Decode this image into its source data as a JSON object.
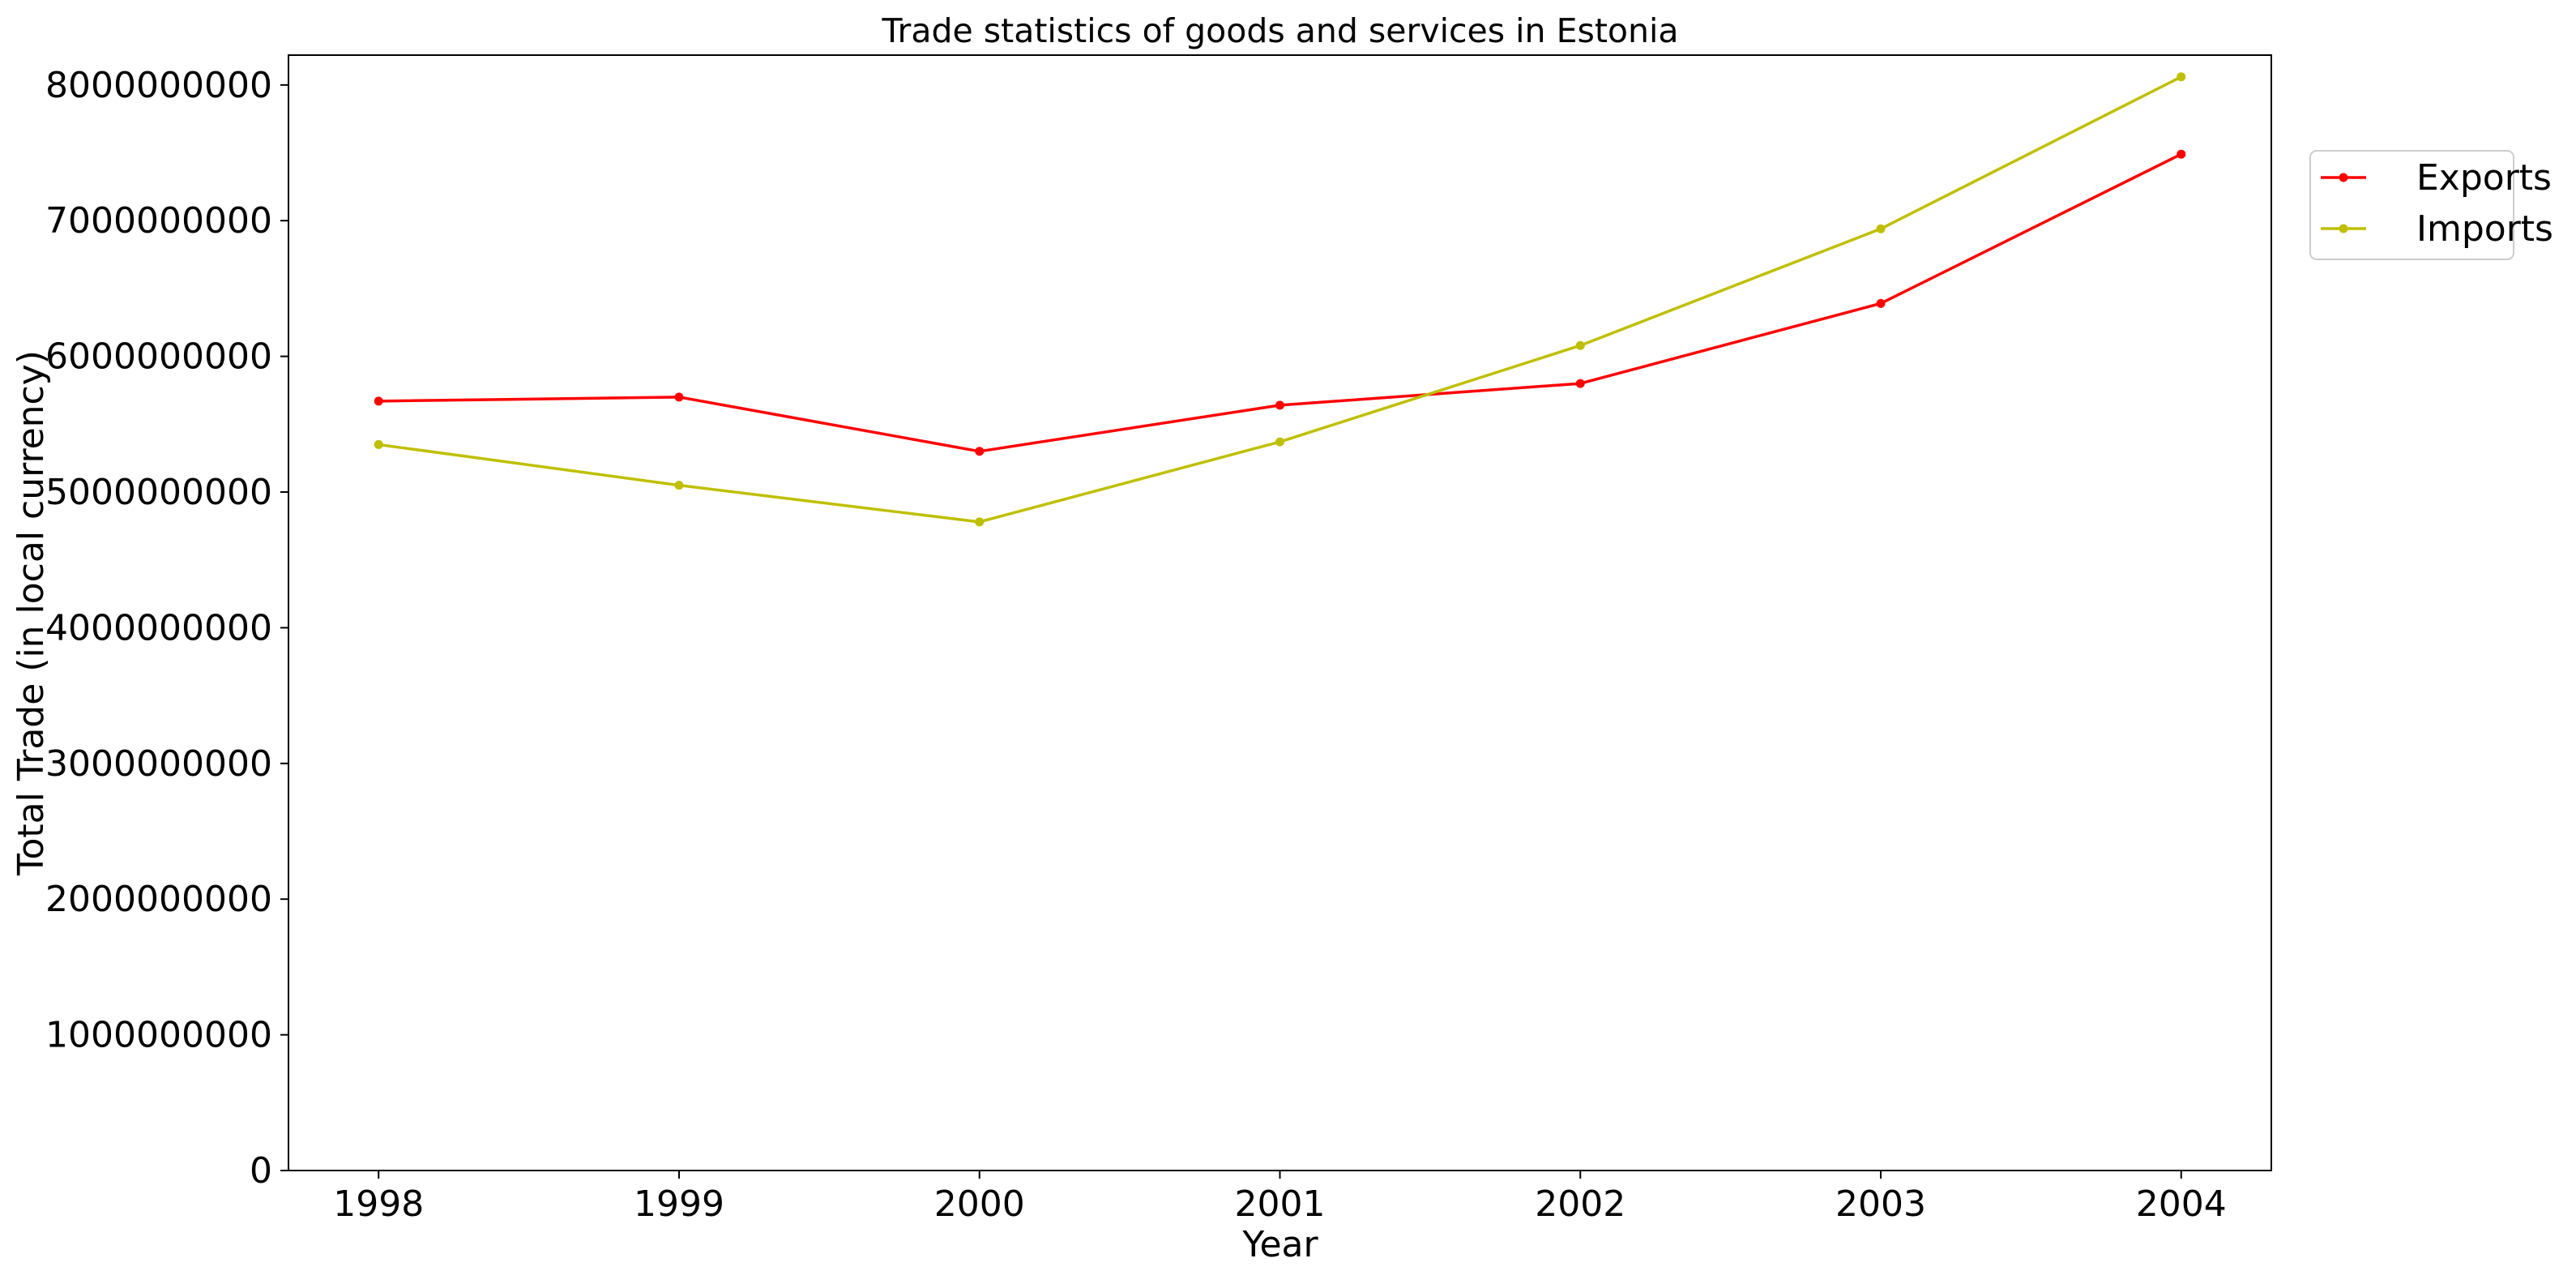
{
  "chart_data": {
    "type": "line",
    "title": "Trade statistics of goods and services in Estonia",
    "xlabel": "Year",
    "ylabel": "Total Trade (in local currency)",
    "x": [
      "1998",
      "1999",
      "2000",
      "2001",
      "2002",
      "2003",
      "2004"
    ],
    "xlim": [
      1997.7,
      2004.3
    ],
    "ylim": [
      0,
      8220000000
    ],
    "yticks": [
      0,
      1000000000,
      2000000000,
      3000000000,
      4000000000,
      5000000000,
      6000000000,
      7000000000,
      8000000000
    ],
    "ytick_labels": [
      "0",
      "1000000000",
      "2000000000",
      "3000000000",
      "4000000000",
      "5000000000",
      "6000000000",
      "7000000000",
      "8000000000"
    ],
    "grid": false,
    "legend_position": "right, outside plot area, upper",
    "series": [
      {
        "name": "Exports",
        "color": "#ff0000",
        "marker": "dot",
        "values": [
          5670000000,
          5700000000,
          5300000000,
          5640000000,
          5800000000,
          6390000000,
          7490000000
        ]
      },
      {
        "name": "Imports",
        "color": "#bfbf00",
        "marker": "dot",
        "values": [
          5350000000,
          5050000000,
          4780000000,
          5370000000,
          6080000000,
          6940000000,
          8060000000
        ]
      }
    ]
  }
}
